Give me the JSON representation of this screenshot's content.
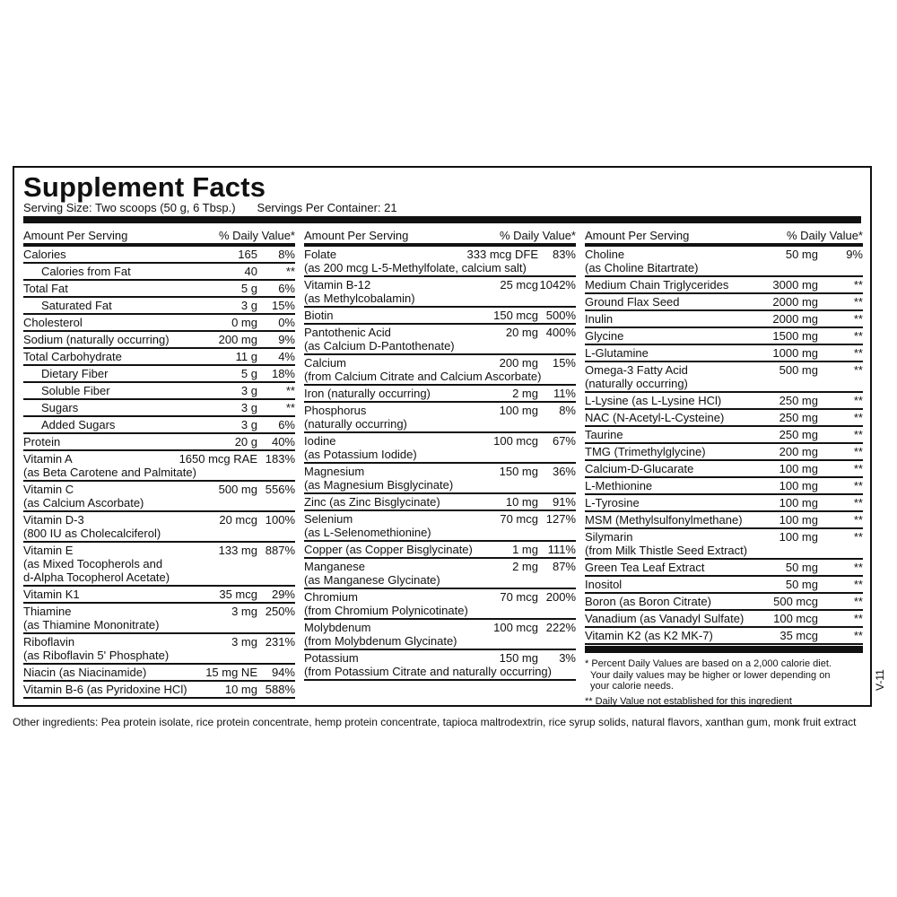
{
  "title": "Supplement Facts",
  "serving_size": "Serving Size: Two scoops (50 g, 6 Tbsp.)",
  "servings_per_container": "Servings Per Container: 21",
  "header": {
    "amount": "Amount Per Serving",
    "dv": "% Daily Value*"
  },
  "columns": [
    [
      {
        "name": "Calories",
        "amount": "165",
        "dv": "8%"
      },
      {
        "name": "Calories from Fat",
        "amount": "40",
        "dv": "**",
        "indent": true
      },
      {
        "name": "Total Fat",
        "amount": "5 g",
        "dv": "6%"
      },
      {
        "name": "Saturated Fat",
        "amount": "3 g",
        "dv": "15%",
        "indent": true
      },
      {
        "name": "Cholesterol",
        "amount": "0 mg",
        "dv": "0%"
      },
      {
        "name": "Sodium (naturally occurring)",
        "amount": "200 mg",
        "dv": "9%"
      },
      {
        "name": "Total Carbohydrate",
        "amount": "11 g",
        "dv": "4%"
      },
      {
        "name": "Dietary Fiber",
        "amount": "5 g",
        "dv": "18%",
        "indent": true
      },
      {
        "name": "Soluble Fiber",
        "amount": "3 g",
        "dv": "**",
        "indent": true
      },
      {
        "name": "Sugars",
        "amount": "3 g",
        "dv": "**",
        "indent": true
      },
      {
        "name": "Added Sugars",
        "amount": "3 g",
        "dv": "6%",
        "indent": true
      },
      {
        "name": "Protein",
        "amount": "20 g",
        "dv": "40%"
      },
      {
        "name": "Vitamin A",
        "amount": "1650 mcg RAE",
        "dv": "183%",
        "sub": [
          "(as Beta Carotene and Palmitate)"
        ]
      },
      {
        "name": "Vitamin C",
        "amount": "500 mg",
        "dv": "556%",
        "sub": [
          "(as Calcium Ascorbate)"
        ]
      },
      {
        "name": "Vitamin D-3",
        "amount": "20 mcg",
        "dv": "100%",
        "sub": [
          "(800 IU as Cholecalciferol)"
        ]
      },
      {
        "name": "Vitamin E",
        "amount": "133 mg",
        "dv": "887%",
        "sub": [
          "(as Mixed Tocopherols and",
          "d-Alpha Tocopherol Acetate)"
        ]
      },
      {
        "name": "Vitamin K1",
        "amount": "35 mcg",
        "dv": "29%"
      },
      {
        "name": "Thiamine",
        "amount": "3 mg",
        "dv": "250%",
        "sub": [
          "(as Thiamine Mononitrate)"
        ]
      },
      {
        "name": "Riboflavin",
        "amount": "3 mg",
        "dv": "231%",
        "sub": [
          "(as Riboflavin 5' Phosphate)"
        ]
      },
      {
        "name": "Niacin (as Niacinamide)",
        "amount": "15 mg NE",
        "dv": "94%"
      },
      {
        "name": "Vitamin B-6 (as Pyridoxine HCl)",
        "amount": "10 mg",
        "dv": "588%"
      }
    ],
    [
      {
        "name": "Folate",
        "amount": "333 mcg DFE",
        "dv": "83%",
        "sub": [
          "(as 200 mcg L-5-Methylfolate, calcium salt)"
        ]
      },
      {
        "name": "Vitamin B-12",
        "amount": "25 mcg",
        "dv": "1042%",
        "sub": [
          "(as Methylcobalamin)"
        ]
      },
      {
        "name": "Biotin",
        "amount": "150 mcg",
        "dv": "500%"
      },
      {
        "name": "Pantothenic Acid",
        "amount": "20 mg",
        "dv": "400%",
        "sub": [
          "(as Calcium D-Pantothenate)"
        ]
      },
      {
        "name": "Calcium",
        "amount": "200 mg",
        "dv": "15%",
        "sub": [
          "(from Calcium Citrate and Calcium Ascorbate)"
        ]
      },
      {
        "name": "Iron (naturally occurring)",
        "amount": "2 mg",
        "dv": "11%"
      },
      {
        "name": "Phosphorus",
        "amount": "100 mg",
        "dv": "8%",
        "sub": [
          "(naturally occurring)"
        ]
      },
      {
        "name": "Iodine",
        "amount": "100 mcg",
        "dv": "67%",
        "sub": [
          "(as Potassium Iodide)"
        ]
      },
      {
        "name": "Magnesium",
        "amount": "150 mg",
        "dv": "36%",
        "sub": [
          "(as Magnesium Bisglycinate)"
        ]
      },
      {
        "name": "Zinc (as Zinc Bisglycinate)",
        "amount": "10 mg",
        "dv": "91%"
      },
      {
        "name": "Selenium",
        "amount": "70 mcg",
        "dv": "127%",
        "sub": [
          "(as L-Selenomethionine)"
        ]
      },
      {
        "name": "Copper (as Copper Bisglycinate)",
        "amount": "1 mg",
        "dv": "111%"
      },
      {
        "name": "Manganese",
        "amount": "2 mg",
        "dv": "87%",
        "sub": [
          "(as Manganese Glycinate)"
        ]
      },
      {
        "name": "Chromium",
        "amount": "70 mcg",
        "dv": "200%",
        "sub": [
          "(from Chromium Polynicotinate)"
        ]
      },
      {
        "name": "Molybdenum",
        "amount": "100 mcg",
        "dv": "222%",
        "sub": [
          "(from Molybdenum Glycinate)"
        ]
      },
      {
        "name": "Potassium",
        "amount": "150 mg",
        "dv": "3%",
        "sub": [
          "(from Potassium Citrate and naturally occurring)"
        ]
      }
    ],
    [
      {
        "name": "Choline",
        "amount": "50 mg",
        "dv": "9%",
        "sub": [
          "(as Choline Bitartrate)"
        ]
      },
      {
        "name": "Medium Chain Triglycerides",
        "amount": "3000 mg",
        "dv": "**"
      },
      {
        "name": "Ground Flax Seed",
        "amount": "2000 mg",
        "dv": "**"
      },
      {
        "name": "Inulin",
        "amount": "2000 mg",
        "dv": "**"
      },
      {
        "name": "Glycine",
        "amount": "1500 mg",
        "dv": "**"
      },
      {
        "name": "L-Glutamine",
        "amount": "1000 mg",
        "dv": "**"
      },
      {
        "name": "Omega-3 Fatty Acid",
        "amount": "500 mg",
        "dv": "**",
        "sub": [
          "(naturally occurring)"
        ]
      },
      {
        "name": "L-Lysine (as L-Lysine HCl)",
        "amount": "250 mg",
        "dv": "**"
      },
      {
        "name": "NAC (N-Acetyl-L-Cysteine)",
        "amount": "250 mg",
        "dv": "**"
      },
      {
        "name": "Taurine",
        "amount": "250 mg",
        "dv": "**"
      },
      {
        "name": "TMG (Trimethylglycine)",
        "amount": "200 mg",
        "dv": "**"
      },
      {
        "name": "Calcium-D-Glucarate",
        "amount": "100 mg",
        "dv": "**"
      },
      {
        "name": "L-Methionine",
        "amount": "100 mg",
        "dv": "**"
      },
      {
        "name": "L-Tyrosine",
        "amount": "100 mg",
        "dv": "**"
      },
      {
        "name": "MSM (Methylsulfonylmethane)",
        "amount": "100 mg",
        "dv": "**"
      },
      {
        "name": "Silymarin",
        "amount": "100 mg",
        "dv": "**",
        "sub": [
          "(from Milk Thistle Seed Extract)"
        ]
      },
      {
        "name": "Green Tea Leaf Extract",
        "amount": "50 mg",
        "dv": "**"
      },
      {
        "name": "Inositol",
        "amount": "50 mg",
        "dv": "**"
      },
      {
        "name": "Boron (as Boron Citrate)",
        "amount": "500 mcg",
        "dv": "**"
      },
      {
        "name": "Vanadium (as Vanadyl Sulfate)",
        "amount": "100 mcg",
        "dv": "**"
      },
      {
        "name": "Vitamin K2 (as K2 MK-7)",
        "amount": "35 mcg",
        "dv": "**"
      }
    ]
  ],
  "footnotes": {
    "percent_line1": "* Percent Daily Values are based on a 2,000 calorie diet.",
    "percent_line2": "Your daily values may be higher or lower depending on",
    "percent_line3": "your calorie needs.",
    "not_established": "** Daily Value not established for this ingredient"
  },
  "version_code": "V-11",
  "other_ingredients": "Other ingredients: Pea protein isolate, rice protein concentrate, hemp protein concentrate, tapioca maltrodextrin, rice syrup solids, natural flavors, xanthan gum, monk fruit extract"
}
